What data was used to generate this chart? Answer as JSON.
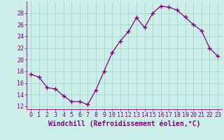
{
  "x": [
    0,
    1,
    2,
    3,
    4,
    5,
    6,
    7,
    8,
    9,
    10,
    11,
    12,
    13,
    14,
    15,
    16,
    17,
    18,
    19,
    20,
    21,
    22,
    23
  ],
  "y": [
    17.5,
    17.0,
    15.2,
    15.0,
    13.8,
    12.8,
    12.8,
    12.3,
    14.8,
    18.0,
    21.2,
    23.2,
    24.8,
    27.2,
    25.5,
    28.0,
    29.2,
    29.0,
    28.5,
    27.3,
    26.0,
    25.0,
    22.0,
    20.6
  ],
  "line_color": "#800080",
  "marker": "+",
  "marker_size": 4,
  "marker_edge_width": 1.0,
  "line_width": 0.9,
  "bg_color": "#cceee8",
  "grid_color": "#aad4cc",
  "xlabel": "Windchill (Refroidissement éolien,°C)",
  "xlabel_fontsize": 7,
  "tick_fontsize": 6,
  "ylim": [
    11.5,
    30.0
  ],
  "xlim": [
    -0.5,
    23.5
  ],
  "yticks": [
    12,
    14,
    16,
    18,
    20,
    22,
    24,
    26,
    28
  ],
  "xticks": [
    0,
    1,
    2,
    3,
    4,
    5,
    6,
    7,
    8,
    9,
    10,
    11,
    12,
    13,
    14,
    15,
    16,
    17,
    18,
    19,
    20,
    21,
    22,
    23
  ],
  "spine_color": "#800080",
  "tick_color": "#800080",
  "label_color": "#800080"
}
